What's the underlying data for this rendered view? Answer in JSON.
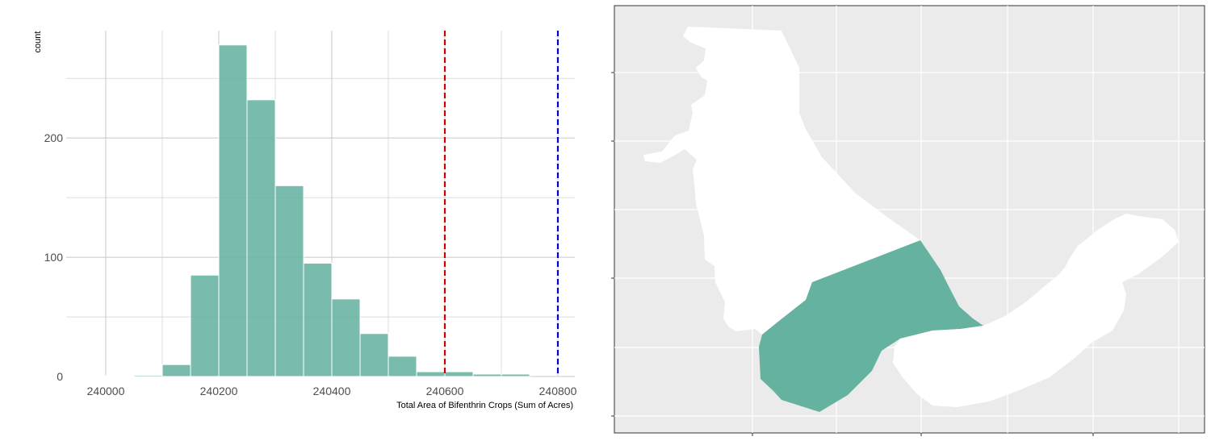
{
  "chart_data": [
    {
      "type": "bar",
      "ylabel": "count",
      "xlabel": "Total Area of Bifenthrin Crops (Sum of Acres)",
      "xlim": [
        239930,
        240830
      ],
      "ylim": [
        0,
        290
      ],
      "x_ticks": [
        240000,
        240200,
        240400,
        240600,
        240800
      ],
      "y_ticks": [
        0,
        100,
        200
      ],
      "bin_width": 50,
      "bins": [
        {
          "start": 239900,
          "end": 239950,
          "count": 0
        },
        {
          "start": 239950,
          "end": 240000,
          "count": 0
        },
        {
          "start": 240000,
          "end": 240050,
          "count": 0
        },
        {
          "start": 240050,
          "end": 240100,
          "count": 1
        },
        {
          "start": 240100,
          "end": 240150,
          "count": 10
        },
        {
          "start": 240150,
          "end": 240200,
          "count": 85
        },
        {
          "start": 240200,
          "end": 240250,
          "count": 278
        },
        {
          "start": 240250,
          "end": 240300,
          "count": 232
        },
        {
          "start": 240300,
          "end": 240350,
          "count": 160
        },
        {
          "start": 240350,
          "end": 240400,
          "count": 95
        },
        {
          "start": 240400,
          "end": 240450,
          "count": 65
        },
        {
          "start": 240450,
          "end": 240500,
          "count": 36
        },
        {
          "start": 240500,
          "end": 240550,
          "count": 17
        },
        {
          "start": 240550,
          "end": 240600,
          "count": 4
        },
        {
          "start": 240600,
          "end": 240650,
          "count": 4
        },
        {
          "start": 240650,
          "end": 240700,
          "count": 2
        },
        {
          "start": 240700,
          "end": 240750,
          "count": 2
        }
      ],
      "vlines": [
        {
          "x": 240600,
          "color": "#cc0000",
          "style": "dashed"
        },
        {
          "x": 240800,
          "color": "#0000cc",
          "style": "dashed"
        }
      ],
      "bar_color": "#66b2a0",
      "grid": true
    }
  ],
  "map": {
    "background": "#ebebeb",
    "grid_color": "#ffffff",
    "region_color": "#ffffff",
    "highlight_color": "#66b2a0"
  }
}
